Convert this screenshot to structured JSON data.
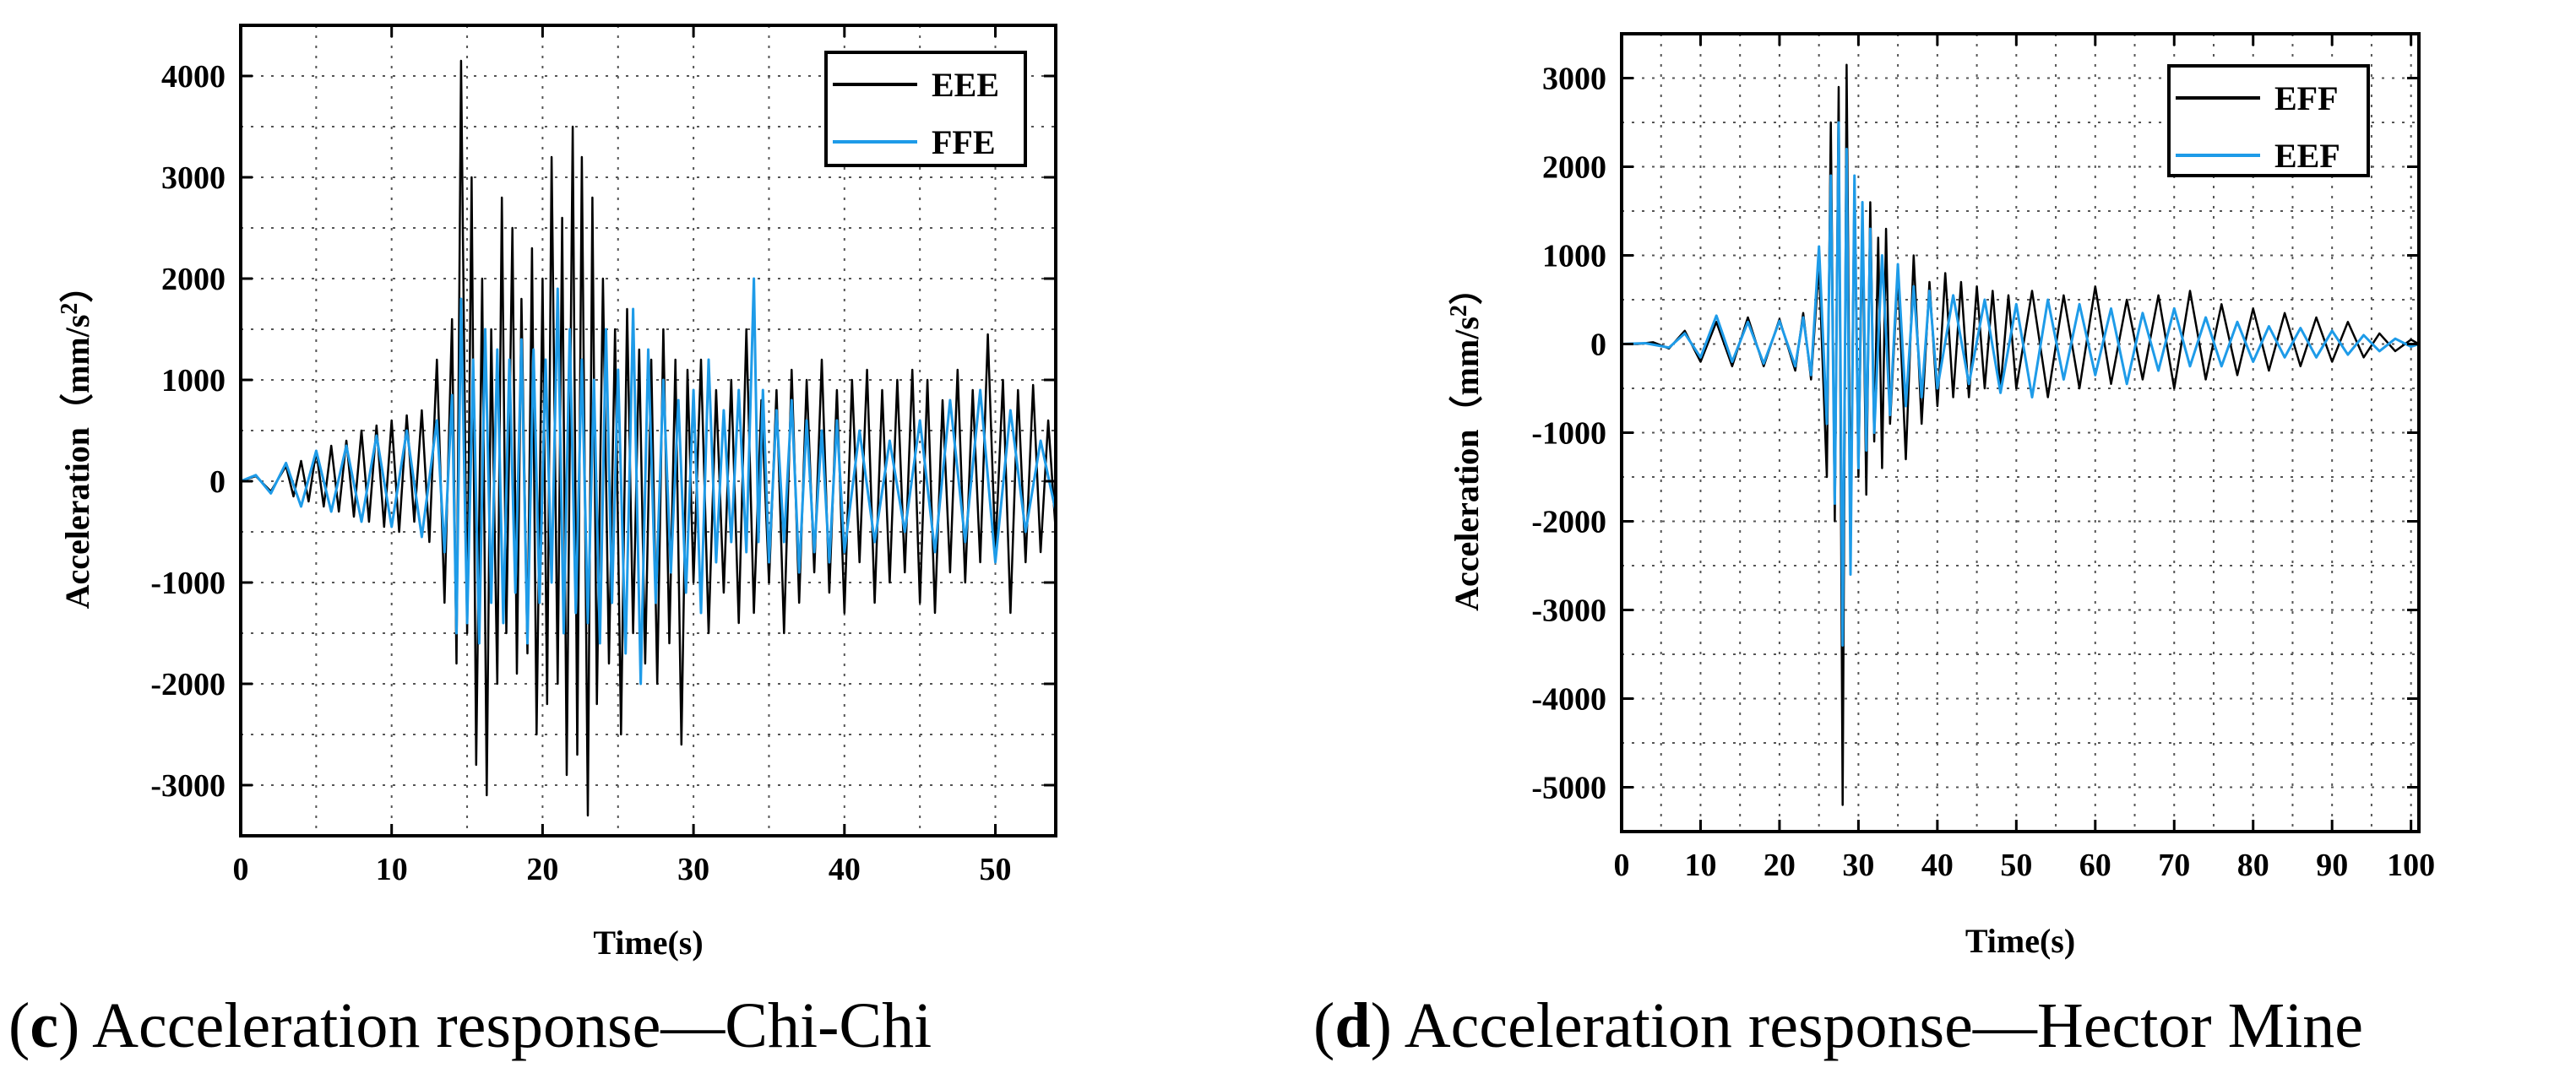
{
  "chart_data": [
    {
      "type": "line",
      "panel_letter": "c",
      "caption": "Acceleration response—Chi-Chi",
      "xlabel": "Time(s)",
      "ylabel": "Acceleration (mm/s²)",
      "ylabel_main": "Acceleration",
      "ylabel_open": "（mm/s",
      "ylabel_sup": "2",
      "ylabel_close": "）",
      "xlim": [
        0,
        54
      ],
      "ylim": [
        -3500,
        4500
      ],
      "xticks": [
        0,
        10,
        20,
        30,
        40,
        50
      ],
      "xtick_labels": [
        "0",
        "10",
        "20",
        "30",
        "40",
        "50"
      ],
      "yticks": [
        -3000,
        -2000,
        -1000,
        0,
        1000,
        2000,
        3000,
        4000
      ],
      "ytick_labels": [
        "-3000",
        "-2000",
        "-1000",
        "0",
        "1000",
        "2000",
        "3000",
        "4000"
      ],
      "grid": true,
      "legend_position": "top-right",
      "series": [
        {
          "name": "EEE",
          "color": "#000000",
          "x": [
            0,
            1,
            2,
            3,
            3.5,
            4,
            4.5,
            5,
            5.5,
            6,
            6.5,
            7,
            7.5,
            8,
            8.5,
            9,
            9.5,
            10,
            10.5,
            11,
            11.5,
            12,
            12.5,
            13,
            13.5,
            14,
            14.3,
            14.6,
            15,
            15.3,
            15.6,
            16,
            16.3,
            16.6,
            17,
            17.3,
            17.6,
            18,
            18.3,
            18.6,
            19,
            19.3,
            19.6,
            20,
            20.3,
            20.6,
            21,
            21.3,
            21.6,
            22,
            22.3,
            22.6,
            23,
            23.3,
            23.6,
            24,
            24.4,
            24.8,
            25.2,
            25.6,
            26,
            26.4,
            26.8,
            27.2,
            27.6,
            28,
            28.4,
            28.8,
            29.2,
            29.6,
            30,
            30.5,
            31,
            31.5,
            32,
            32.5,
            33,
            33.5,
            34,
            34.5,
            35,
            35.5,
            36,
            36.5,
            37,
            37.5,
            38,
            38.5,
            39,
            39.5,
            40,
            40.5,
            41,
            41.5,
            42,
            42.5,
            43,
            43.5,
            44,
            44.5,
            45,
            45.5,
            46,
            46.5,
            47,
            47.5,
            48,
            48.5,
            49,
            49.5,
            50,
            50.5,
            51,
            51.5,
            52,
            52.5,
            53,
            53.5,
            54
          ],
          "y": [
            0,
            50,
            -100,
            150,
            -150,
            200,
            -200,
            300,
            -250,
            350,
            -300,
            400,
            -350,
            500,
            -400,
            550,
            -450,
            600,
            -500,
            650,
            -400,
            700,
            -600,
            1200,
            -1200,
            1600,
            -1800,
            4150,
            -1500,
            3000,
            -2800,
            2000,
            -3100,
            1500,
            -2000,
            2800,
            -1500,
            2500,
            -1900,
            1800,
            -1700,
            2300,
            -2500,
            2000,
            -2200,
            3200,
            -2000,
            2600,
            -2900,
            3500,
            -2700,
            3200,
            -3300,
            2800,
            -2200,
            2000,
            -1800,
            1500,
            -2500,
            1700,
            -1500,
            1300,
            -1800,
            1200,
            -2000,
            1500,
            -1600,
            1200,
            -2600,
            1100,
            -1000,
            1200,
            -1500,
            900,
            -1100,
            1000,
            -1400,
            1500,
            -1300,
            800,
            -1000,
            900,
            -1500,
            1100,
            -1200,
            1000,
            -900,
            1200,
            -1100,
            900,
            -1300,
            1000,
            -800,
            1100,
            -1200,
            900,
            -1000,
            1000,
            -900,
            1100,
            -1200,
            1000,
            -1300,
            800,
            -900,
            1100,
            -1000,
            900,
            -800,
            1450,
            -700,
            1000,
            -1300,
            900,
            -800,
            950,
            -700,
            600,
            -500
          ]
        },
        {
          "name": "FFE",
          "color": "#1e9be8",
          "x": [
            0,
            1,
            2,
            3,
            4,
            5,
            6,
            7,
            8,
            9,
            10,
            11,
            12,
            13,
            13.5,
            14,
            14.3,
            14.6,
            15,
            15.4,
            15.8,
            16.2,
            16.6,
            17,
            17.4,
            17.8,
            18.2,
            18.6,
            19,
            19.4,
            19.8,
            20.2,
            20.6,
            21,
            21.4,
            21.8,
            22.2,
            22.6,
            23,
            23.4,
            23.8,
            24.2,
            24.6,
            25,
            25.5,
            26,
            26.5,
            27,
            27.5,
            28,
            28.5,
            29,
            29.5,
            30,
            30.5,
            31,
            31.5,
            32,
            32.5,
            33,
            33.5,
            34,
            34.3,
            34.6,
            35,
            35.5,
            36,
            36.5,
            37,
            37.5,
            38,
            38.5,
            39,
            39.5,
            40,
            41,
            42,
            43,
            44,
            45,
            46,
            47,
            48,
            49,
            50,
            51,
            52,
            53,
            54
          ],
          "y": [
            0,
            60,
            -120,
            180,
            -250,
            300,
            -300,
            350,
            -400,
            450,
            -450,
            500,
            -550,
            600,
            -700,
            850,
            -1500,
            1800,
            -1400,
            1200,
            -1600,
            1500,
            -1200,
            1300,
            -1400,
            1200,
            -1100,
            1400,
            -1600,
            1300,
            -1200,
            1200,
            -1000,
            1900,
            -1500,
            1500,
            -1300,
            1200,
            -1400,
            1000,
            -1600,
            1500,
            -1200,
            1100,
            -1700,
            1700,
            -2000,
            1300,
            -1200,
            1000,
            -900,
            800,
            -1100,
            900,
            -1300,
            1200,
            -800,
            700,
            -600,
            900,
            -700,
            2000,
            -600,
            900,
            -800,
            700,
            -600,
            800,
            -900,
            600,
            -700,
            500,
            -800,
            600,
            -700,
            500,
            -600,
            400,
            -500,
            600,
            -700,
            800,
            -600,
            900,
            -800,
            700,
            -500,
            400,
            -300
          ]
        }
      ]
    },
    {
      "type": "line",
      "panel_letter": "d",
      "caption": "Acceleration response—Hector Mine",
      "xlabel": "Time(s)",
      "ylabel": "Acceleration (mm/s²)",
      "ylabel_main": "Acceleration",
      "ylabel_open": "（mm/s",
      "ylabel_sup": "2",
      "ylabel_close": "）",
      "xlim": [
        0,
        101
      ],
      "ylim": [
        -5500,
        3500
      ],
      "xticks": [
        0,
        10,
        20,
        30,
        40,
        50,
        60,
        70,
        80,
        90,
        100
      ],
      "xtick_labels": [
        "0",
        "10",
        "20",
        "30",
        "40",
        "50",
        "60",
        "70",
        "80",
        "90",
        "100"
      ],
      "yticks": [
        -5000,
        -4000,
        -3000,
        -2000,
        -1000,
        0,
        1000,
        2000,
        3000
      ],
      "ytick_labels": [
        "-5000",
        "-4000",
        "-3000",
        "-2000",
        "-1000",
        "0",
        "1000",
        "2000",
        "3000"
      ],
      "grid": true,
      "legend_position": "top-right",
      "series": [
        {
          "name": "EFF",
          "color": "#000000",
          "x": [
            0,
            2,
            4,
            6,
            8,
            10,
            12,
            14,
            16,
            18,
            20,
            22,
            23,
            24,
            25,
            26,
            26.5,
            27,
            27.5,
            28,
            28.5,
            29,
            29.5,
            30,
            30.5,
            31,
            31.5,
            32,
            32.5,
            33,
            33.5,
            34,
            35,
            36,
            37,
            38,
            39,
            40,
            41,
            42,
            43,
            44,
            45,
            46,
            47,
            48,
            49,
            50,
            52,
            54,
            56,
            58,
            60,
            62,
            64,
            66,
            68,
            70,
            72,
            74,
            76,
            78,
            80,
            82,
            84,
            86,
            88,
            90,
            92,
            94,
            96,
            98,
            100,
            101
          ],
          "y": [
            0,
            0,
            20,
            -50,
            150,
            -200,
            250,
            -250,
            300,
            -250,
            280,
            -300,
            350,
            -400,
            900,
            -1500,
            2500,
            -2000,
            2900,
            -5200,
            3150,
            -2100,
            1800,
            -1500,
            1400,
            -1700,
            1600,
            -1100,
            1200,
            -1400,
            1300,
            -900,
            800,
            -1300,
            1000,
            -900,
            700,
            -700,
            800,
            -600,
            700,
            -600,
            650,
            -500,
            600,
            -500,
            550,
            -500,
            600,
            -600,
            550,
            -500,
            650,
            -450,
            500,
            -400,
            550,
            -500,
            600,
            -400,
            450,
            -350,
            400,
            -300,
            350,
            -250,
            300,
            -200,
            250,
            -150,
            120,
            -80,
            50,
            0
          ]
        },
        {
          "name": "EEF",
          "color": "#1e9be8",
          "x": [
            0,
            3,
            6,
            8,
            10,
            12,
            14,
            16,
            18,
            20,
            22,
            23,
            24,
            25,
            26,
            26.5,
            27,
            27.5,
            28,
            28.5,
            29,
            29.5,
            30,
            30.5,
            31,
            31.5,
            32,
            33,
            34,
            35,
            36,
            37,
            38,
            39,
            40,
            42,
            44,
            46,
            48,
            50,
            52,
            54,
            56,
            58,
            60,
            62,
            64,
            66,
            68,
            70,
            72,
            74,
            76,
            78,
            80,
            82,
            84,
            86,
            88,
            90,
            92,
            94,
            96,
            98,
            100,
            101
          ],
          "y": [
            0,
            10,
            -40,
            120,
            -150,
            320,
            -200,
            250,
            -220,
            260,
            -250,
            300,
            -350,
            1100,
            -900,
            1900,
            -1800,
            2500,
            -3400,
            2200,
            -2600,
            1900,
            -1400,
            1600,
            -1200,
            1300,
            -1000,
            1000,
            -800,
            900,
            -700,
            650,
            -600,
            600,
            -500,
            550,
            -450,
            500,
            -550,
            450,
            -600,
            500,
            -400,
            450,
            -350,
            400,
            -450,
            350,
            -300,
            400,
            -250,
            300,
            -250,
            250,
            -200,
            200,
            -150,
            180,
            -150,
            150,
            -120,
            100,
            -80,
            60,
            -30,
            0
          ]
        }
      ]
    }
  ]
}
